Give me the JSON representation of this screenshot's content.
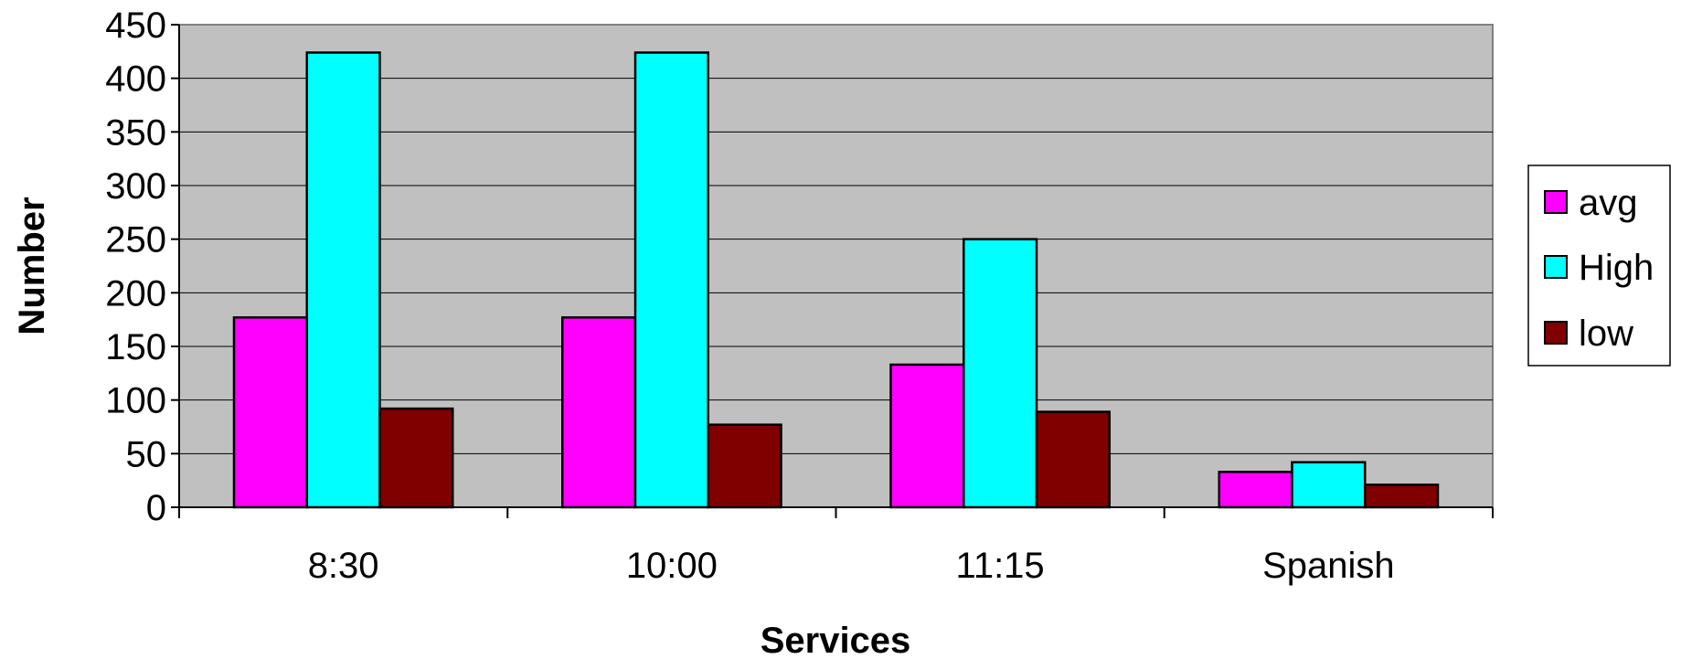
{
  "chart_data": {
    "type": "bar",
    "title": "",
    "xlabel": "Services",
    "ylabel": "Number",
    "categories": [
      "8:30",
      "10:00",
      "11:15",
      "Spanish"
    ],
    "series": [
      {
        "name": "avg",
        "color": "#ff00ff",
        "values": [
          177,
          177,
          133,
          33
        ]
      },
      {
        "name": "High",
        "color": "#00ffff",
        "values": [
          424,
          424,
          250,
          42
        ]
      },
      {
        "name": "low",
        "color": "#800000",
        "values": [
          92,
          77,
          89,
          21
        ]
      }
    ],
    "ylim": [
      0,
      450
    ],
    "yticks": [
      "0",
      "50",
      "100",
      "150",
      "200",
      "250",
      "300",
      "350",
      "400",
      "450"
    ],
    "grid": true,
    "plot_background": "#c0c0c0",
    "legend": {
      "position": "right",
      "entries": [
        "avg",
        "High",
        "low"
      ]
    }
  }
}
